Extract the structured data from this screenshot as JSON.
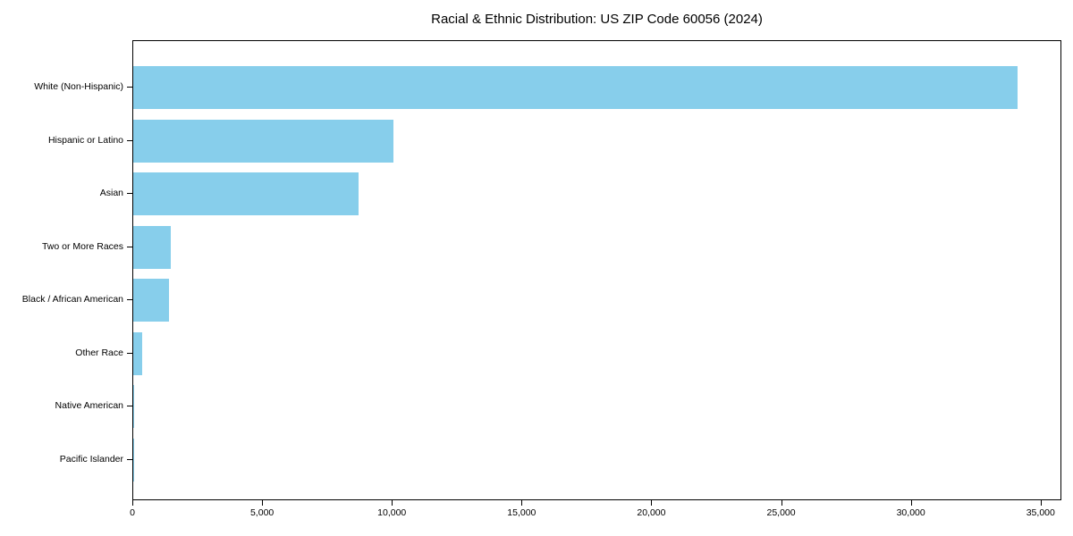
{
  "colors": {
    "bar": "#87CEEB",
    "axis": "#000000",
    "text": "#000000",
    "background": "#ffffff"
  },
  "chart_data": {
    "type": "bar",
    "orientation": "horizontal",
    "title": "Racial & Ethnic Distribution: US ZIP Code 60056 (2024)",
    "categories": [
      "White (Non-Hispanic)",
      "Hispanic or Latino",
      "Asian",
      "Two or More Races",
      "Black / African American",
      "Other Race",
      "Native American",
      "Pacific Islander"
    ],
    "values": [
      34080,
      10030,
      8680,
      1430,
      1390,
      340,
      25,
      10
    ],
    "xlabel": "",
    "ylabel": "",
    "x_ticks": [
      0,
      5000,
      10000,
      15000,
      20000,
      25000,
      30000,
      35000
    ],
    "x_tick_labels": [
      "0",
      "5,000",
      "10,000",
      "15,000",
      "20,000",
      "25,000",
      "30,000",
      "35,000"
    ],
    "xlim": [
      0,
      35800
    ],
    "grid": false,
    "bar_color": "#87CEEB",
    "categories_order": "top-to-bottom"
  }
}
